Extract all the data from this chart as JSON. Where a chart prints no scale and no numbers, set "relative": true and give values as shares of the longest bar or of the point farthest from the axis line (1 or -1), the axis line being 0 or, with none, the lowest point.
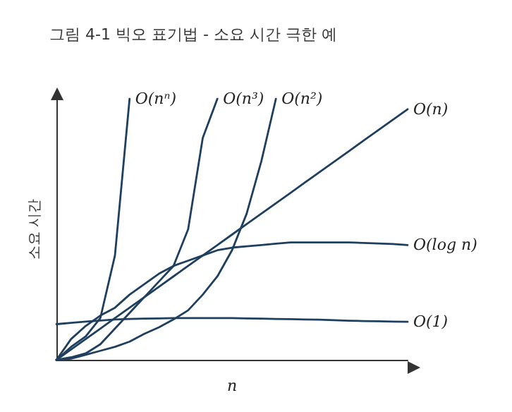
{
  "chart_data": {
    "type": "line",
    "relative": true,
    "title": "그림 4-1 빅오 표기법 - 소요 시간 극한 예",
    "xlabel": "n",
    "ylabel": "소요 시간",
    "categories": [
      null,
      null,
      null,
      null,
      null,
      null,
      null,
      null,
      null,
      null,
      null,
      null,
      null,
      null,
      null,
      null,
      null,
      null,
      null,
      null,
      null,
      null,
      null,
      null,
      null
    ],
    "series": [
      {
        "name": "O(nⁿ)",
        "color": "#1f3f5f",
        "values": [
          0,
          0.05,
          0.09,
          0.16,
          0.4,
          1.0,
          null,
          null,
          null,
          null,
          null,
          null,
          null,
          null,
          null,
          null,
          null,
          null,
          null,
          null,
          null,
          null,
          null,
          null,
          null
        ]
      },
      {
        "name": "O(n³)",
        "color": "#1f3f5f",
        "values": [
          0,
          0.01,
          0.025,
          0.06,
          0.12,
          0.18,
          0.24,
          0.3,
          0.36,
          0.5,
          0.85,
          1.0,
          null,
          null,
          null,
          null,
          null,
          null,
          null,
          null,
          null,
          null,
          null,
          null,
          null
        ]
      },
      {
        "name": "O(n²)",
        "color": "#1f3f5f",
        "values": [
          0,
          0.005,
          0.02,
          0.035,
          0.05,
          0.07,
          0.1,
          0.125,
          0.155,
          0.19,
          0.25,
          0.32,
          0.42,
          0.56,
          0.76,
          1.0,
          null,
          null,
          null,
          null,
          null,
          null,
          null,
          null,
          null
        ]
      },
      {
        "name": "O(n)",
        "color": "#1f3f5f",
        "values": [
          0,
          0.04,
          0.08,
          0.12,
          0.16,
          0.2,
          0.24,
          0.28,
          0.32,
          0.36,
          0.4,
          0.44,
          0.48,
          0.52,
          0.56,
          0.6,
          0.64,
          0.68,
          0.72,
          0.76,
          0.8,
          0.84,
          0.88,
          0.92,
          0.96
        ]
      },
      {
        "name": "O(log n)",
        "color": "#1f3f5f",
        "values": [
          0,
          0.08,
          0.13,
          0.17,
          0.2,
          0.25,
          0.29,
          0.33,
          0.36,
          0.38,
          0.4,
          0.42,
          0.43,
          0.435,
          0.44,
          0.445,
          0.45,
          0.45,
          0.45,
          0.45,
          0.45,
          0.448,
          0.446,
          0.444,
          0.44
        ]
      },
      {
        "name": "O(1)",
        "color": "#1f3f5f",
        "values": [
          0.137,
          0.142,
          0.147,
          0.151,
          0.155,
          0.157,
          0.158,
          0.159,
          0.16,
          0.16,
          0.16,
          0.16,
          0.16,
          0.159,
          0.158,
          0.157,
          0.156,
          0.155,
          0.154,
          0.152,
          0.15,
          0.149,
          0.148,
          0.147,
          0.146
        ]
      }
    ],
    "grid": false,
    "legend": false,
    "marker": "none",
    "line_style": "solid"
  }
}
